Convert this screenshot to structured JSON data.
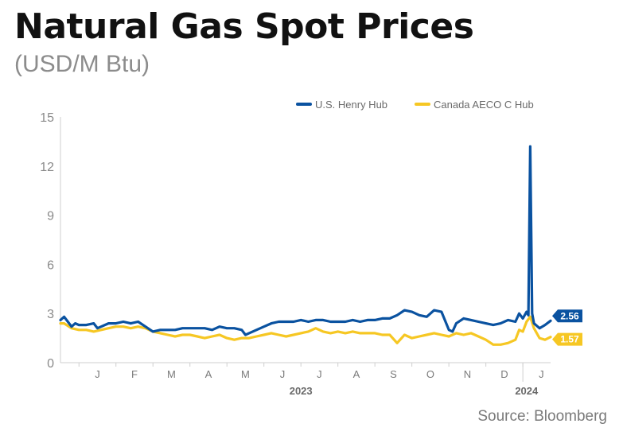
{
  "header": {
    "title": "Natural Gas Spot Prices",
    "subtitle": "(USD/M Btu)"
  },
  "source": "Source: Bloomberg",
  "colors": {
    "henry": "#0a52a0",
    "aeco": "#f6c723",
    "axis": "#cfcfcf"
  },
  "chart_data": {
    "type": "line",
    "title": "Natural Gas Spot Prices",
    "subtitle": "(USD/M Btu)",
    "ylim": [
      0,
      15
    ],
    "y_ticks": [
      "0",
      "3",
      "6",
      "9",
      "12",
      "15"
    ],
    "grid": false,
    "legend_position": "top-right",
    "month_ticks": [
      "J",
      "F",
      "M",
      "A",
      "M",
      "J",
      "J",
      "A",
      "S",
      "O",
      "N",
      "D",
      "J"
    ],
    "year_labels": [
      "2023",
      "2024"
    ],
    "x_unit": "months since 2023-01-01",
    "series": [
      {
        "name": "U.S. Henry Hub",
        "color": "#0a52a0",
        "end_label": "2.56",
        "points": [
          [
            -0.5,
            2.6
          ],
          [
            -0.4,
            2.8
          ],
          [
            -0.3,
            2.5
          ],
          [
            -0.2,
            2.2
          ],
          [
            -0.1,
            2.4
          ],
          [
            0,
            2.3
          ],
          [
            0.2,
            2.3
          ],
          [
            0.4,
            2.4
          ],
          [
            0.5,
            2.1
          ],
          [
            0.6,
            2.2
          ],
          [
            0.8,
            2.4
          ],
          [
            1.0,
            2.4
          ],
          [
            1.2,
            2.5
          ],
          [
            1.4,
            2.4
          ],
          [
            1.6,
            2.5
          ],
          [
            1.8,
            2.2
          ],
          [
            2.0,
            1.9
          ],
          [
            2.2,
            2.0
          ],
          [
            2.4,
            2.0
          ],
          [
            2.6,
            2.0
          ],
          [
            2.8,
            2.1
          ],
          [
            3.0,
            2.1
          ],
          [
            3.2,
            2.1
          ],
          [
            3.4,
            2.1
          ],
          [
            3.6,
            2.0
          ],
          [
            3.8,
            2.2
          ],
          [
            4.0,
            2.1
          ],
          [
            4.2,
            2.1
          ],
          [
            4.4,
            2.0
          ],
          [
            4.5,
            1.7
          ],
          [
            4.6,
            1.8
          ],
          [
            4.8,
            2.0
          ],
          [
            5.0,
            2.2
          ],
          [
            5.2,
            2.4
          ],
          [
            5.4,
            2.5
          ],
          [
            5.6,
            2.5
          ],
          [
            5.8,
            2.5
          ],
          [
            6.0,
            2.6
          ],
          [
            6.2,
            2.5
          ],
          [
            6.4,
            2.6
          ],
          [
            6.6,
            2.6
          ],
          [
            6.8,
            2.5
          ],
          [
            7.0,
            2.5
          ],
          [
            7.2,
            2.5
          ],
          [
            7.4,
            2.6
          ],
          [
            7.6,
            2.5
          ],
          [
            7.8,
            2.6
          ],
          [
            8.0,
            2.6
          ],
          [
            8.2,
            2.7
          ],
          [
            8.4,
            2.7
          ],
          [
            8.6,
            2.9
          ],
          [
            8.8,
            3.2
          ],
          [
            9.0,
            3.1
          ],
          [
            9.2,
            2.9
          ],
          [
            9.4,
            2.8
          ],
          [
            9.6,
            3.2
          ],
          [
            9.8,
            3.1
          ],
          [
            10.0,
            2.0
          ],
          [
            10.1,
            1.9
          ],
          [
            10.2,
            2.4
          ],
          [
            10.4,
            2.7
          ],
          [
            10.6,
            2.6
          ],
          [
            10.8,
            2.5
          ],
          [
            11.0,
            2.4
          ],
          [
            11.2,
            2.3
          ],
          [
            11.4,
            2.4
          ],
          [
            11.6,
            2.6
          ],
          [
            11.8,
            2.5
          ],
          [
            11.9,
            3.0
          ],
          [
            12.0,
            2.7
          ],
          [
            12.1,
            3.1
          ],
          [
            12.15,
            2.9
          ],
          [
            12.2,
            13.2
          ],
          [
            12.25,
            3.0
          ],
          [
            12.3,
            2.4
          ],
          [
            12.45,
            2.1
          ],
          [
            12.6,
            2.3
          ],
          [
            12.75,
            2.56
          ]
        ]
      },
      {
        "name": "Canada AECO C Hub",
        "color": "#f6c723",
        "end_label": "1.57",
        "points": [
          [
            -0.5,
            2.4
          ],
          [
            -0.4,
            2.4
          ],
          [
            -0.2,
            2.1
          ],
          [
            0,
            2.0
          ],
          [
            0.2,
            2.0
          ],
          [
            0.4,
            1.9
          ],
          [
            0.6,
            2.0
          ],
          [
            0.8,
            2.1
          ],
          [
            1.0,
            2.2
          ],
          [
            1.2,
            2.2
          ],
          [
            1.4,
            2.1
          ],
          [
            1.6,
            2.2
          ],
          [
            1.8,
            2.1
          ],
          [
            2.0,
            1.9
          ],
          [
            2.2,
            1.8
          ],
          [
            2.4,
            1.7
          ],
          [
            2.6,
            1.6
          ],
          [
            2.8,
            1.7
          ],
          [
            3.0,
            1.7
          ],
          [
            3.2,
            1.6
          ],
          [
            3.4,
            1.5
          ],
          [
            3.6,
            1.6
          ],
          [
            3.8,
            1.7
          ],
          [
            4.0,
            1.5
          ],
          [
            4.2,
            1.4
          ],
          [
            4.4,
            1.5
          ],
          [
            4.6,
            1.5
          ],
          [
            4.8,
            1.6
          ],
          [
            5.0,
            1.7
          ],
          [
            5.2,
            1.8
          ],
          [
            5.4,
            1.7
          ],
          [
            5.6,
            1.6
          ],
          [
            5.8,
            1.7
          ],
          [
            6.0,
            1.8
          ],
          [
            6.2,
            1.9
          ],
          [
            6.4,
            2.1
          ],
          [
            6.6,
            1.9
          ],
          [
            6.8,
            1.8
          ],
          [
            7.0,
            1.9
          ],
          [
            7.2,
            1.8
          ],
          [
            7.4,
            1.9
          ],
          [
            7.6,
            1.8
          ],
          [
            7.8,
            1.8
          ],
          [
            8.0,
            1.8
          ],
          [
            8.2,
            1.7
          ],
          [
            8.4,
            1.7
          ],
          [
            8.6,
            1.2
          ],
          [
            8.8,
            1.7
          ],
          [
            9.0,
            1.5
          ],
          [
            9.2,
            1.6
          ],
          [
            9.4,
            1.7
          ],
          [
            9.6,
            1.8
          ],
          [
            9.8,
            1.7
          ],
          [
            10.0,
            1.6
          ],
          [
            10.2,
            1.8
          ],
          [
            10.4,
            1.7
          ],
          [
            10.6,
            1.8
          ],
          [
            10.8,
            1.6
          ],
          [
            11.0,
            1.4
          ],
          [
            11.2,
            1.1
          ],
          [
            11.4,
            1.1
          ],
          [
            11.6,
            1.2
          ],
          [
            11.8,
            1.4
          ],
          [
            11.9,
            2.0
          ],
          [
            12.0,
            1.9
          ],
          [
            12.1,
            2.5
          ],
          [
            12.2,
            2.8
          ],
          [
            12.3,
            2.1
          ],
          [
            12.45,
            1.5
          ],
          [
            12.6,
            1.4
          ],
          [
            12.75,
            1.57
          ]
        ]
      }
    ]
  }
}
